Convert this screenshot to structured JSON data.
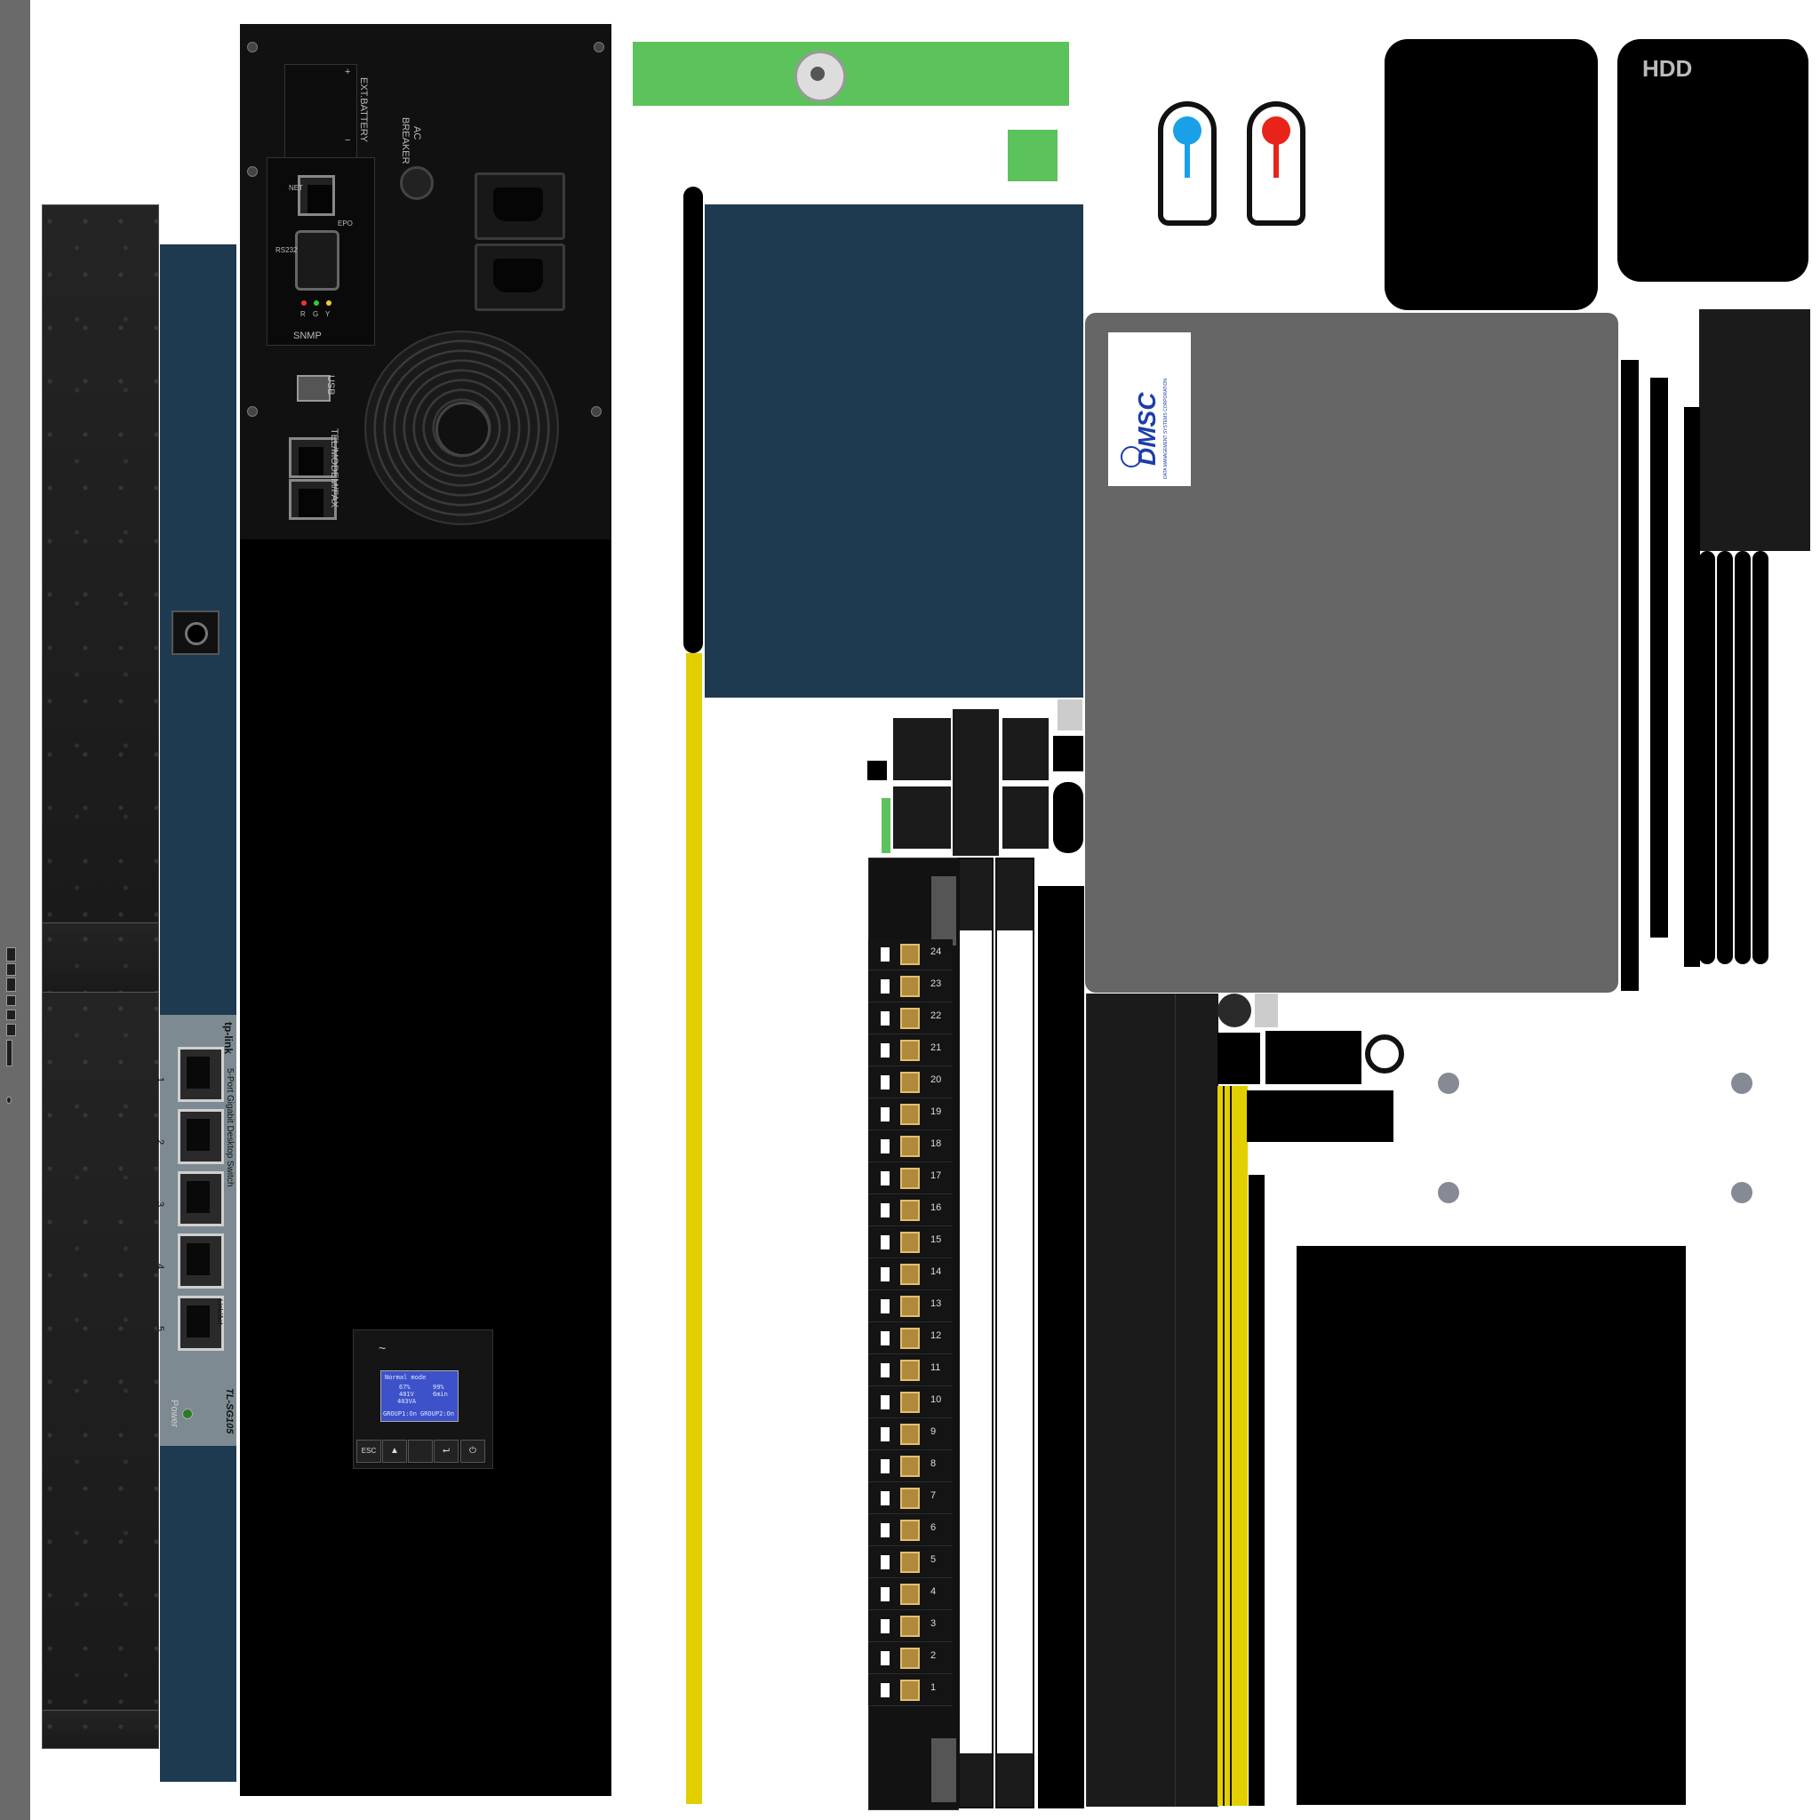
{
  "ups_rear": {
    "ext_battery": "EXT.BATTERY",
    "plus": "+",
    "minus": "−",
    "ac_breaker_line1": "AC",
    "ac_breaker_line2": "BREAKER",
    "net": "NET",
    "epo": "EPO",
    "rs232": "RS232",
    "leds": [
      "R",
      "G",
      "Y"
    ],
    "snmp": "SNMP",
    "usb": "USB",
    "tel_modem_fax": "TEL/MODEM/FAX"
  },
  "ups_display": {
    "sine": "~",
    "mode": "Normal mode",
    "load_pct": "67%",
    "battery_pct": "99%",
    "voltage": "401V",
    "runtime": "6min",
    "power": "403VA",
    "group1": "GROUP1:On",
    "group2": "GROUP2:On",
    "buttons": [
      "ESC",
      "▲",
      "⮠",
      "⏻"
    ]
  },
  "switch": {
    "brand": "tp-link",
    "desc": "5-Port Gigabit Desktop Switch",
    "model": "TL-SG105",
    "ports": [
      "1",
      "2",
      "3",
      "4",
      "5"
    ],
    "link_act": "Link/Act",
    "power": "Power"
  },
  "patch_panel": {
    "ports": [
      "24",
      "23",
      "22",
      "21",
      "20",
      "19",
      "18",
      "17",
      "16",
      "15",
      "14",
      "13",
      "12",
      "11",
      "10",
      "9",
      "8",
      "7",
      "6",
      "5",
      "4",
      "3",
      "2",
      "1"
    ]
  },
  "hdd_label": "HDD",
  "dmsc_logo": {
    "text": "DMSC",
    "subtitle": "DATA MANAGEMENT SYSTEMS CORPORATION"
  },
  "colors": {
    "navy": "#1e3a50",
    "gray_panel": "#666666",
    "yellow_cable": "#e3cf00",
    "green_bracket": "#5cc25c",
    "blue_pin": "#1aa0e8",
    "red_pin": "#e8231a"
  }
}
